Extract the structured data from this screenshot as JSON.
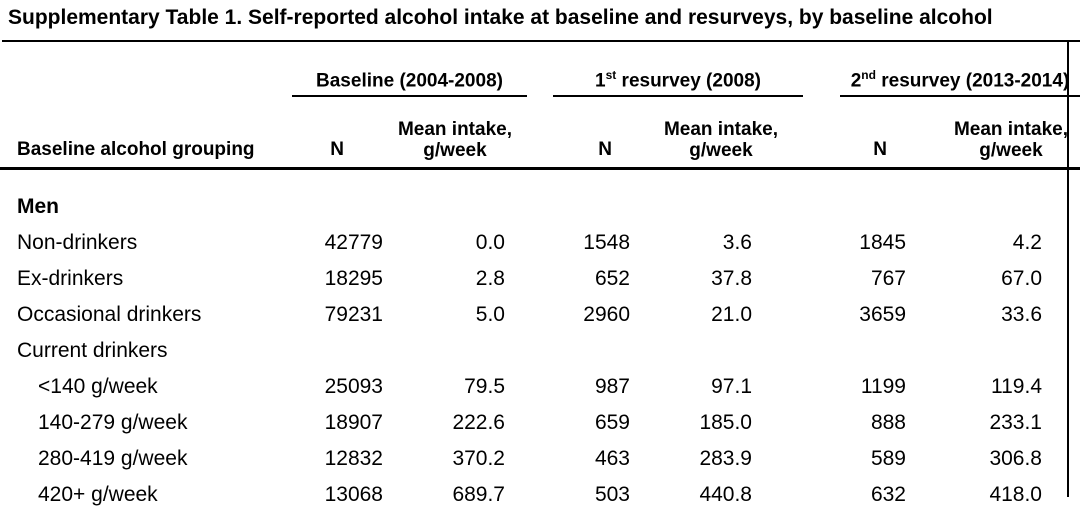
{
  "title": "Supplementary Table 1. Self-reported alcohol intake at baseline and resurveys, by baseline alcohol",
  "table": {
    "group_headers": [
      {
        "pre": "Baseline (2004-2008)",
        "sup": "",
        "post": ""
      },
      {
        "pre": "1",
        "sup": "st",
        "post": " resurvey (2008)"
      },
      {
        "pre": "2",
        "sup": "nd",
        "post": " resurvey (2013-2014)"
      }
    ],
    "column_headers": {
      "grouping": "Baseline alcohol grouping",
      "n": "N",
      "mean_line1": "Mean intake,",
      "mean_line2": "g/week"
    },
    "rows": [
      {
        "label": "Men",
        "bold": true,
        "indent": false,
        "values": [
          "",
          "",
          "",
          "",
          "",
          ""
        ]
      },
      {
        "label": "Non-drinkers",
        "bold": false,
        "indent": false,
        "values": [
          "42779",
          "0.0",
          "1548",
          "3.6",
          "1845",
          "4.2"
        ]
      },
      {
        "label": "Ex-drinkers",
        "bold": false,
        "indent": false,
        "values": [
          "18295",
          "2.8",
          "652",
          "37.8",
          "767",
          "67.0"
        ]
      },
      {
        "label": "Occasional drinkers",
        "bold": false,
        "indent": false,
        "values": [
          "79231",
          "5.0",
          "2960",
          "21.0",
          "3659",
          "33.6"
        ]
      },
      {
        "label": "Current drinkers",
        "bold": false,
        "indent": false,
        "values": [
          "",
          "",
          "",
          "",
          "",
          ""
        ]
      },
      {
        "label": "<140 g/week",
        "bold": false,
        "indent": true,
        "values": [
          "25093",
          "79.5",
          "987",
          "97.1",
          "1199",
          "119.4"
        ]
      },
      {
        "label": "140-279 g/week",
        "bold": false,
        "indent": true,
        "values": [
          "18907",
          "222.6",
          "659",
          "185.0",
          "888",
          "233.1"
        ]
      },
      {
        "label": "280-419 g/week",
        "bold": false,
        "indent": true,
        "values": [
          "12832",
          "370.2",
          "463",
          "283.9",
          "589",
          "306.8"
        ]
      },
      {
        "label": "420+ g/week",
        "bold": false,
        "indent": true,
        "values": [
          "13068",
          "689.7",
          "503",
          "440.8",
          "632",
          "418.0"
        ]
      }
    ],
    "colors": {
      "text": "#000000",
      "background": "#ffffff",
      "rule": "#000000"
    }
  }
}
